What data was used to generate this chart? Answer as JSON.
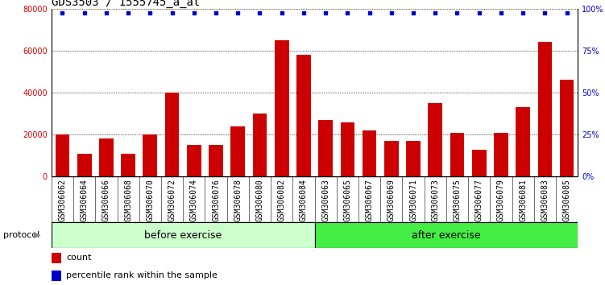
{
  "title": "GDS3503 / 1555745_a_at",
  "categories": [
    "GSM306062",
    "GSM306064",
    "GSM306066",
    "GSM306068",
    "GSM306070",
    "GSM306072",
    "GSM306074",
    "GSM306076",
    "GSM306078",
    "GSM306080",
    "GSM306082",
    "GSM306084",
    "GSM306063",
    "GSM306065",
    "GSM306067",
    "GSM306069",
    "GSM306071",
    "GSM306073",
    "GSM306075",
    "GSM306077",
    "GSM306079",
    "GSM306081",
    "GSM306083",
    "GSM306085"
  ],
  "counts": [
    20000,
    11000,
    18000,
    11000,
    20000,
    40000,
    15000,
    15000,
    24000,
    30000,
    65000,
    58000,
    27000,
    26000,
    22000,
    17000,
    17000,
    35000,
    21000,
    13000,
    21000,
    33000,
    64000,
    46000
  ],
  "before_exercise_count": 12,
  "ylim_left": [
    0,
    80000
  ],
  "ylim_right": [
    0,
    100
  ],
  "yticks_left": [
    0,
    20000,
    40000,
    60000,
    80000
  ],
  "yticks_right": [
    0,
    25,
    50,
    75,
    100
  ],
  "bar_color": "#cc0000",
  "dot_color": "#0000cc",
  "before_color": "#ccffcc",
  "after_color": "#44ee44",
  "protocol_label": "protocol",
  "before_label": "before exercise",
  "after_label": "after exercise",
  "legend_count": "count",
  "legend_pct": "percentile rank within the sample",
  "plot_bg": "#ffffff",
  "xlabel_bg": "#cccccc",
  "title_fontsize": 10,
  "tick_fontsize": 7,
  "legend_fontsize": 8,
  "proto_fontsize": 9
}
